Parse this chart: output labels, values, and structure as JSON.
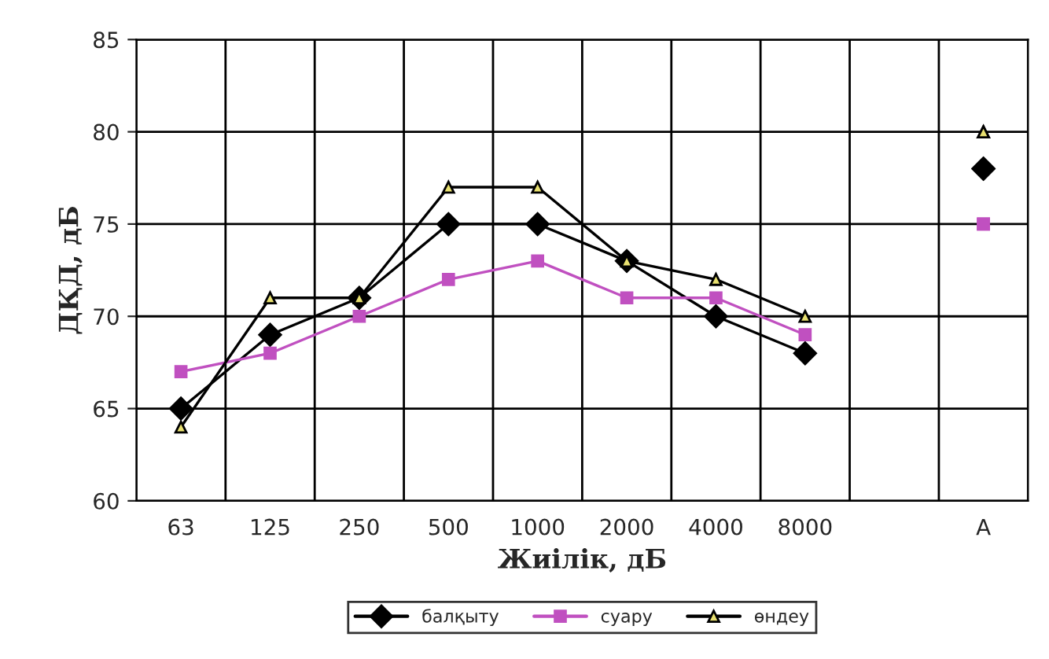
{
  "chart_data": {
    "type": "line",
    "xlabel": "Жиілік, дБ",
    "ylabel": "ДҚД, дБ",
    "categories": [
      "63",
      "125",
      "250",
      "500",
      "1000",
      "2000",
      "4000",
      "8000",
      null,
      "A"
    ],
    "series": [
      {
        "name": "балқыту",
        "color": "#000000",
        "marker": "diamond",
        "values": [
          65,
          69,
          71,
          75,
          75,
          73,
          70,
          68,
          null,
          78
        ]
      },
      {
        "name": "суару",
        "color": "#c050c0",
        "marker": "square",
        "values": [
          67,
          68,
          70,
          72,
          73,
          71,
          71,
          69,
          null,
          75
        ]
      },
      {
        "name": "өндеу",
        "color": "#000000",
        "marker": "triangle",
        "values": [
          64,
          71,
          71,
          77,
          77,
          73,
          72,
          70,
          null,
          80
        ]
      }
    ],
    "ylim": [
      60,
      85
    ],
    "yticks": [
      60,
      65,
      70,
      75,
      80,
      85
    ],
    "grid": true,
    "legend": "bottom"
  }
}
